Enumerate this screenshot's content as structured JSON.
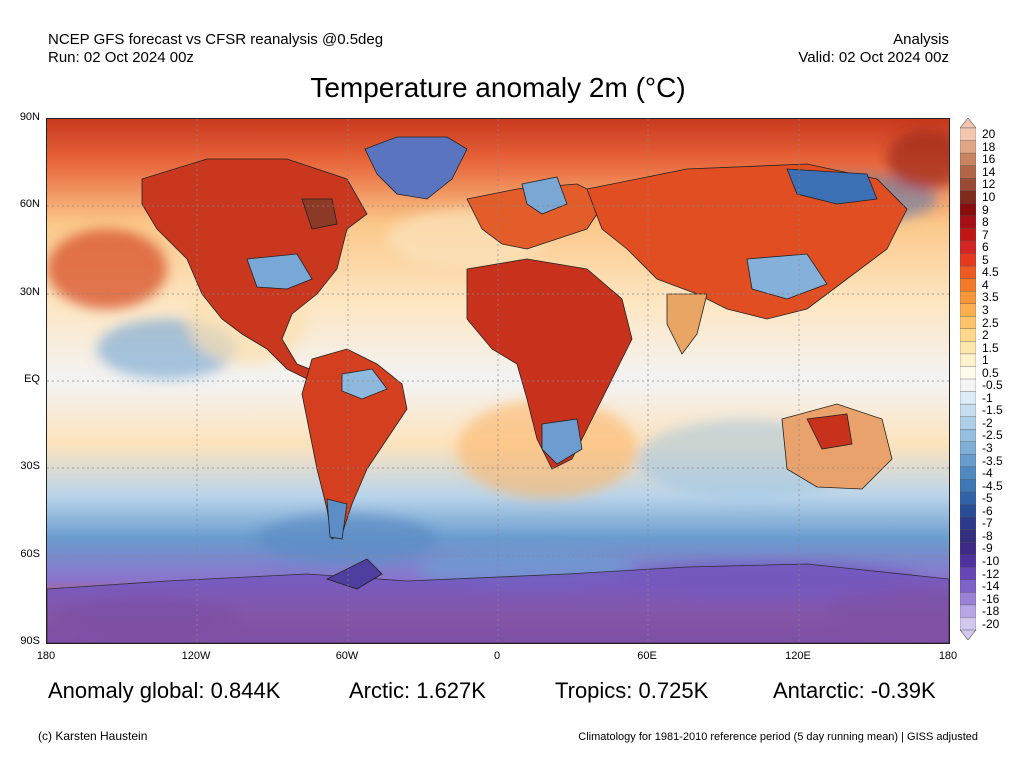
{
  "header": {
    "left_line1": "NCEP GFS forecast vs CFSR reanalysis @0.5deg",
    "left_line2": "Run: 02 Oct 2024 00z",
    "right_line1": "Analysis",
    "right_line2": "Valid: 02 Oct 2024 00z"
  },
  "title": "Temperature anomaly 2m (°C)",
  "axes": {
    "lat_labels": [
      "90N",
      "60N",
      "30N",
      "EQ",
      "30S",
      "60S",
      "90S"
    ],
    "lon_labels": [
      "180",
      "120W",
      "60W",
      "0",
      "60E",
      "120E",
      "180"
    ]
  },
  "stats": {
    "global": "Anomaly global: 0.844K",
    "arctic": "Arctic: 1.627K",
    "tropics": "Tropics: 0.725K",
    "antarctic": "Antarctic: -0.39K"
  },
  "footer": {
    "credit": "(c) Karsten Haustein",
    "note": "Climatology for 1981-2010 reference period (5 day running mean) | GISS adjusted"
  },
  "legend": {
    "labels": [
      "20",
      "18",
      "16",
      "14",
      "12",
      "10",
      "9",
      "8",
      "7",
      "6",
      "5",
      "4.5",
      "4",
      "3.5",
      "3",
      "2.5",
      "2",
      "1.5",
      "1",
      "0.5",
      "-0.5",
      "-1",
      "-1.5",
      "-2",
      "-2.5",
      "-3",
      "-3.5",
      "-4",
      "-4.5",
      "-5",
      "-6",
      "-7",
      "-8",
      "-9",
      "-10",
      "-12",
      "-14",
      "-16",
      "-18",
      "-20"
    ],
    "colors": [
      "#f3c6b0",
      "#e0a585",
      "#c9835f",
      "#b3654a",
      "#9c4a36",
      "#7e2a1c",
      "#8a0d0d",
      "#a50f15",
      "#c01616",
      "#d42424",
      "#e53a1e",
      "#ee5a1f",
      "#f37a28",
      "#f79638",
      "#fbae4e",
      "#fdc46a",
      "#fed88a",
      "#fee7aa",
      "#fff2cc",
      "#fffbec",
      "#f4f4f4",
      "#dcebf6",
      "#c6def0",
      "#aecfe8",
      "#96bfdf",
      "#7eaed6",
      "#679ccc",
      "#518ac1",
      "#3e77b5",
      "#3062a8",
      "#2a4d98",
      "#2b3a8a",
      "#33307f",
      "#3f2a88",
      "#4f31a0",
      "#6646b6",
      "#7d62c8",
      "#9a82d8",
      "#b7a5e5",
      "#d3c7f0"
    ]
  }
}
